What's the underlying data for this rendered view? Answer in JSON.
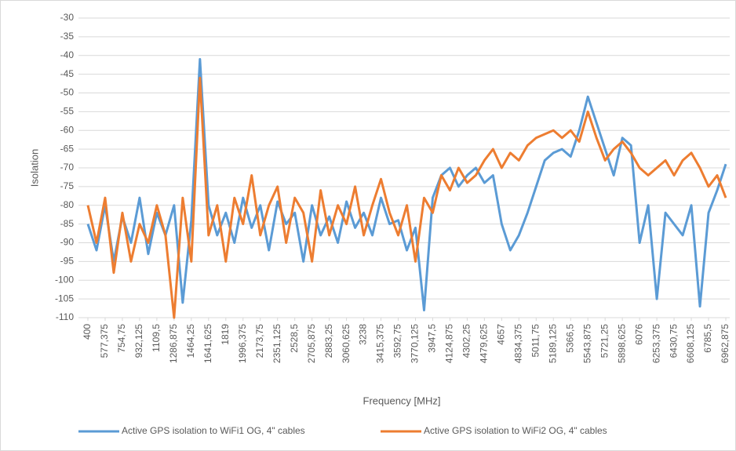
{
  "chart_data": {
    "type": "line",
    "x_label": "Frequency [MHz]",
    "y_label": "Isolation",
    "x": [
      400,
      488.6875,
      577.375,
      666.0625,
      754.75,
      843.4375,
      932.125,
      1020.8125,
      1109.5,
      1198.1875,
      1286.875,
      1375.5625,
      1464.25,
      1552.9375,
      1641.625,
      1730.3125,
      1819,
      1907.6875,
      1996.375,
      2085.0625,
      2173.75,
      2262.4375,
      2351.125,
      2439.8125,
      2528.5,
      2617.1875,
      2705.875,
      2794.5625,
      2883.25,
      2971.9375,
      3060.625,
      3149.3125,
      3238,
      3326.6875,
      3415.375,
      3504.0625,
      3592.75,
      3681.4375,
      3770.125,
      3858.8125,
      3947.5,
      4036.1875,
      4124.875,
      4213.5625,
      4302.25,
      4390.9375,
      4479.625,
      4568.3125,
      4657,
      4745.6875,
      4834.375,
      4923.0625,
      5011.75,
      5100.4375,
      5189.125,
      5277.8125,
      5366.5,
      5455.1875,
      5543.875,
      5632.5625,
      5721.25,
      5809.9375,
      5898.625,
      5987.3125,
      6076,
      6164.6875,
      6253.375,
      6342.0625,
      6430.75,
      6519.4375,
      6608.125,
      6696.8125,
      6785.5,
      6874.1875,
      6962.875
    ],
    "series": [
      {
        "name": "Active GPS isolation to WiFi1 OG, 4\" cables",
        "color": "#5b9bd5",
        "values": [
          -85,
          -92,
          -80,
          -95,
          -83,
          -90,
          -78,
          -93,
          -82,
          -88,
          -80,
          -106,
          -84,
          -41,
          -80,
          -88,
          -82,
          -90,
          -78,
          -86,
          -80,
          -92,
          -79,
          -85,
          -82,
          -95,
          -80,
          -88,
          -83,
          -90,
          -79,
          -86,
          -82,
          -88,
          -78,
          -85,
          -84,
          -92,
          -86,
          -108,
          -78,
          -72,
          -70,
          -75,
          -72,
          -70,
          -74,
          -72,
          -85,
          -92,
          -88,
          -82,
          -75,
          -68,
          -66,
          -65,
          -67,
          -60,
          -51,
          -58,
          -65,
          -72,
          -62,
          -64,
          -90,
          -80,
          -105,
          -82,
          -85,
          -88,
          -80,
          -107,
          -82,
          -76,
          -69
        ]
      },
      {
        "name": "Active GPS isolation to WiFi2 OG, 4\" cables",
        "color": "#ed7d31",
        "values": [
          -80,
          -90,
          -78,
          -98,
          -82,
          -95,
          -85,
          -90,
          -80,
          -88,
          -110,
          -78,
          -95,
          -46,
          -88,
          -80,
          -95,
          -78,
          -85,
          -72,
          -88,
          -80,
          -75,
          -90,
          -78,
          -82,
          -95,
          -76,
          -88,
          -80,
          -85,
          -75,
          -88,
          -80,
          -73,
          -82,
          -88,
          -80,
          -95,
          -78,
          -82,
          -72,
          -76,
          -70,
          -74,
          -72,
          -68,
          -65,
          -70,
          -66,
          -68,
          -64,
          -62,
          -61,
          -60,
          -62,
          -60,
          -63,
          -55,
          -62,
          -68,
          -65,
          -63,
          -66,
          -70,
          -72,
          -70,
          -68,
          -72,
          -68,
          -66,
          -70,
          -75,
          -72,
          -78
        ]
      }
    ],
    "xlim": [
      400,
      6962.875
    ],
    "xticks": [
      400,
      {
        "value": 577.375,
        "label": "577,375"
      },
      {
        "value": 754.75,
        "label": "754,75"
      },
      {
        "value": 932.125,
        "label": "932,125"
      },
      {
        "value": 1109.5,
        "label": "1109,5"
      },
      {
        "value": 1286.875,
        "label": "1286,875"
      },
      {
        "value": 1464.25,
        "label": "1464,25"
      },
      {
        "value": 1641.625,
        "label": "1641,625"
      },
      1819,
      {
        "value": 1996.375,
        "label": "1996,375"
      },
      {
        "value": 2173.75,
        "label": "2173,75"
      },
      {
        "value": 2351.125,
        "label": "2351,125"
      },
      {
        "value": 2528.5,
        "label": "2528,5"
      },
      {
        "value": 2705.875,
        "label": "2705,875"
      },
      {
        "value": 2883.25,
        "label": "2883,25"
      },
      {
        "value": 3060.625,
        "label": "3060,625"
      },
      3238,
      {
        "value": 3415.375,
        "label": "3415,375"
      },
      {
        "value": 3592.75,
        "label": "3592,75"
      },
      {
        "value": 3770.125,
        "label": "3770,125"
      },
      {
        "value": 3947.5,
        "label": "3947,5"
      },
      {
        "value": 4124.875,
        "label": "4124,875"
      },
      {
        "value": 4302.25,
        "label": "4302,25"
      },
      {
        "value": 4479.625,
        "label": "4479,625"
      },
      4657,
      {
        "value": 4834.375,
        "label": "4834,375"
      },
      {
        "value": 5011.75,
        "label": "5011,75"
      },
      {
        "value": 5189.125,
        "label": "5189,125"
      },
      {
        "value": 5366.5,
        "label": "5366,5"
      },
      {
        "value": 5543.875,
        "label": "5543,875"
      },
      {
        "value": 5721.25,
        "label": "5721,25"
      },
      {
        "value": 5898.625,
        "label": "5898,625"
      },
      6076,
      {
        "value": 6253.375,
        "label": "6253,375"
      },
      {
        "value": 6430.75,
        "label": "6430,75"
      },
      {
        "value": 6608.125,
        "label": "6608,125"
      },
      {
        "value": 6785.5,
        "label": "6785,5"
      },
      {
        "value": 6962.875,
        "label": "6962,875"
      }
    ],
    "ylim": [
      -110,
      -30
    ],
    "yticks": [
      -30,
      -35,
      -40,
      -45,
      -50,
      -55,
      -60,
      -65,
      -70,
      -75,
      -80,
      -85,
      -90,
      -95,
      -100,
      -105,
      -110
    ],
    "grid": true,
    "legend": "bottom"
  }
}
